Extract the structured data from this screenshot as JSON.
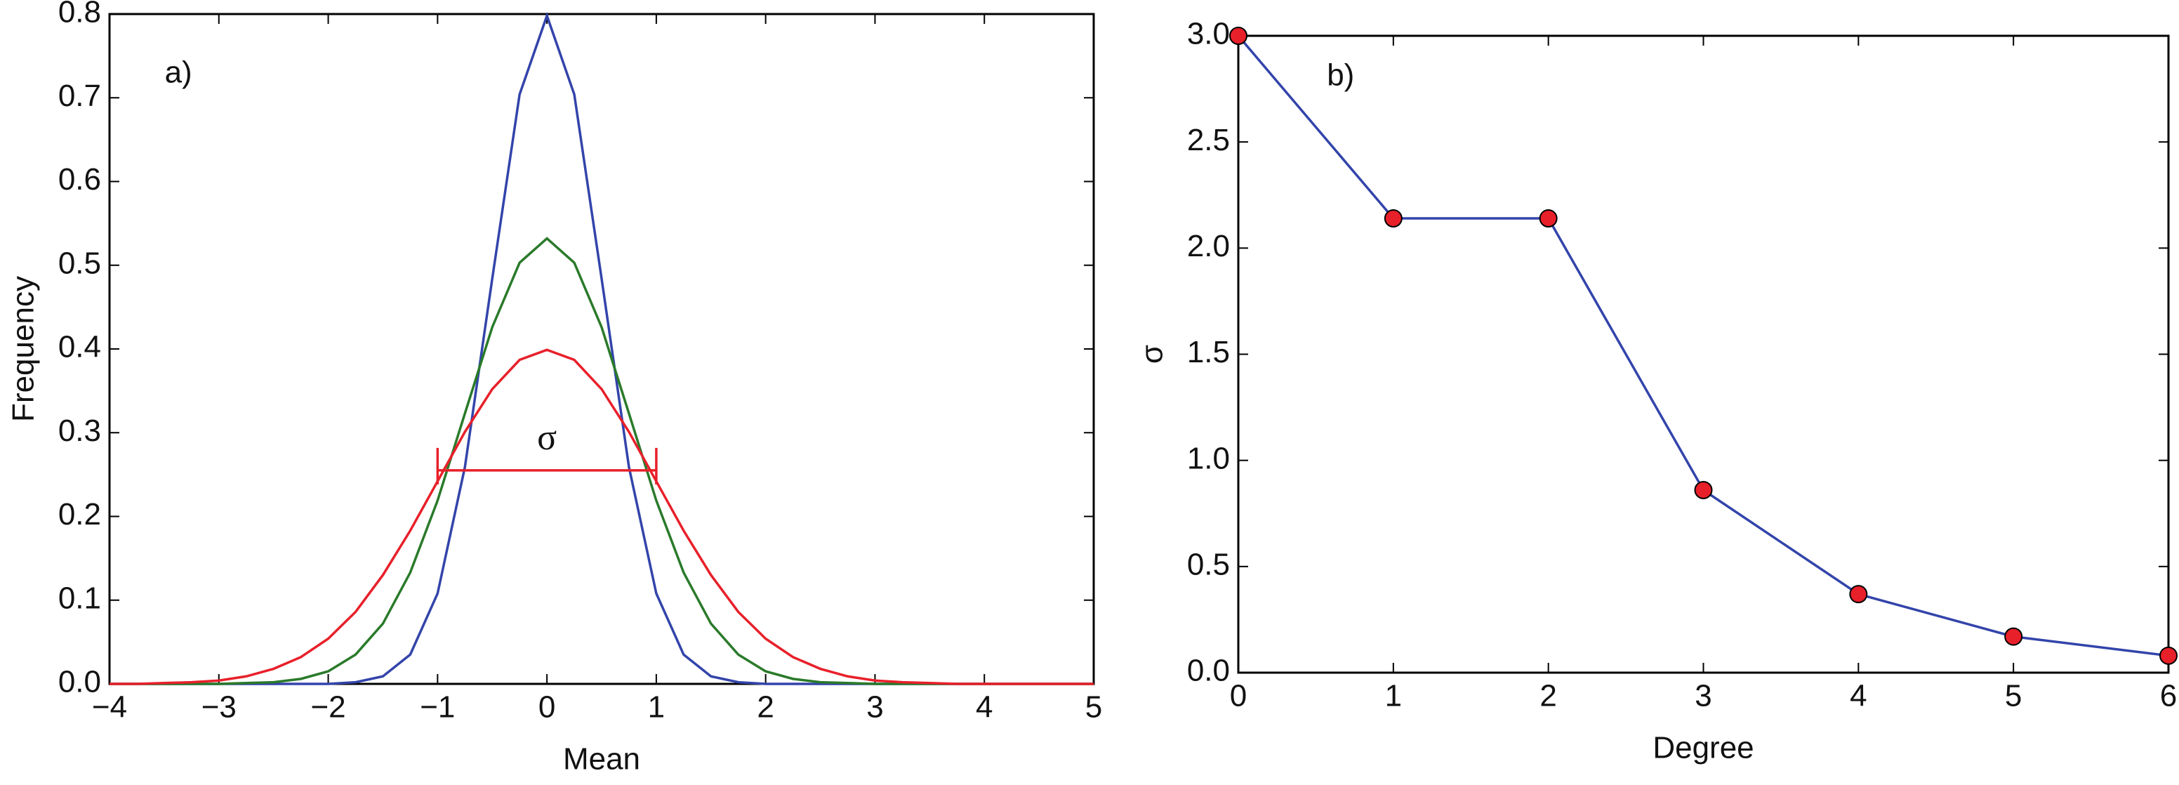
{
  "chart_data": [
    {
      "type": "line",
      "panel_label": "a)",
      "x_label": "Mean",
      "y_label": "Frequency",
      "x": [
        -4,
        -3.75,
        -3.5,
        -3.25,
        -3,
        -2.75,
        -2.5,
        -2.25,
        -2,
        -1.75,
        -1.5,
        -1.25,
        -1,
        -0.75,
        -0.5,
        -0.25,
        0,
        0.25,
        0.5,
        0.75,
        1,
        1.25,
        1.5,
        1.75,
        2,
        2.25,
        2.5,
        2.75,
        3,
        3.25,
        3.5,
        3.75,
        4,
        4.25,
        4.5,
        4.75,
        5
      ],
      "series": [
        {
          "color": "#3344aa",
          "values": [
            0,
            0,
            0,
            0,
            0,
            0,
            0,
            0,
            0.0,
            0.002,
            0.009,
            0.035,
            0.108,
            0.259,
            0.484,
            0.704,
            0.798,
            0.704,
            0.484,
            0.259,
            0.108,
            0.035,
            0.009,
            0.002,
            0.0,
            0,
            0,
            0,
            0,
            0,
            0,
            0,
            0,
            0,
            0,
            0,
            0
          ]
        },
        {
          "color": "#2a7a2a",
          "values": [
            0,
            0,
            0,
            0,
            0.0,
            0.001,
            0.002,
            0.006,
            0.015,
            0.035,
            0.072,
            0.133,
            0.219,
            0.323,
            0.426,
            0.503,
            0.532,
            0.503,
            0.426,
            0.323,
            0.219,
            0.133,
            0.072,
            0.035,
            0.015,
            0.006,
            0.002,
            0.001,
            0.0,
            0,
            0,
            0,
            0,
            0,
            0,
            0,
            0
          ]
        },
        {
          "color": "#e8202a",
          "values": [
            0.0,
            0.0,
            0.001,
            0.002,
            0.004,
            0.009,
            0.018,
            0.032,
            0.054,
            0.086,
            0.13,
            0.183,
            0.242,
            0.301,
            0.352,
            0.387,
            0.399,
            0.387,
            0.352,
            0.301,
            0.242,
            0.183,
            0.13,
            0.086,
            0.054,
            0.032,
            0.018,
            0.009,
            0.004,
            0.002,
            0.001,
            0.0,
            0.0,
            0,
            0,
            0,
            0
          ]
        }
      ],
      "sigma_bar": {
        "label": "σ",
        "x": [
          -1,
          1
        ],
        "y": 0.255,
        "color": "#e8202a"
      },
      "xlim": [
        -4,
        5
      ],
      "xticks": [
        {
          "value": -4,
          "label": "−4"
        },
        {
          "value": -3,
          "label": "−3"
        },
        {
          "value": -2,
          "label": "−2"
        },
        {
          "value": -1,
          "label": "−1"
        },
        0,
        1,
        2,
        3,
        4,
        5
      ],
      "ylim": [
        0,
        0.8
      ],
      "yticks": [
        {
          "value": 0,
          "label": "0.0"
        },
        0.1,
        0.2,
        0.3,
        0.4,
        0.5,
        0.6,
        0.7,
        0.8
      ]
    },
    {
      "type": "line",
      "panel_label": "b)",
      "x_label": "Degree",
      "y_label": "σ",
      "x": [
        0,
        1,
        2,
        3,
        4,
        5,
        6
      ],
      "series": [
        {
          "color": "#3344aa",
          "marker_color": "#e8202a",
          "values": [
            3.0,
            2.14,
            2.14,
            0.86,
            0.37,
            0.17,
            0.08
          ]
        }
      ],
      "xlim": [
        0,
        6
      ],
      "xticks": [
        0,
        1,
        2,
        3,
        4,
        5,
        6
      ],
      "ylim": [
        0,
        3
      ],
      "yticks": [
        {
          "value": 0,
          "label": "0.0"
        },
        0.5,
        {
          "value": 1,
          "label": "1.0"
        },
        1.5,
        {
          "value": 2,
          "label": "2.0"
        },
        2.5,
        {
          "value": 3,
          "label": "3.0"
        }
      ]
    }
  ]
}
